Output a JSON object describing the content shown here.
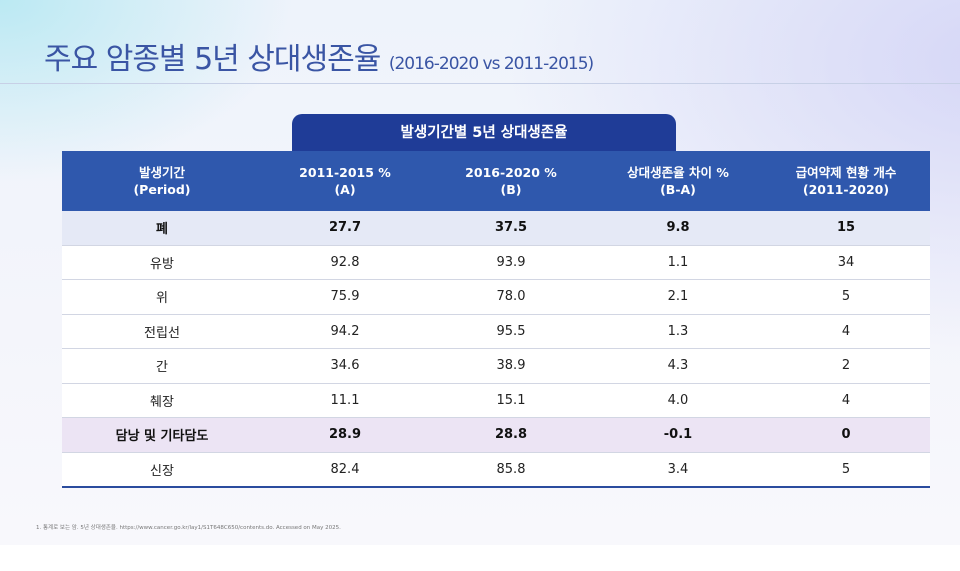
{
  "title": {
    "main": "주요 암종별 5년 상대생존율",
    "sub": "(2016-2020 vs 2011-2015)"
  },
  "table": {
    "tab_label": "발생기간별 5년 상대생존율",
    "headers": [
      {
        "line1": "발생기간",
        "line2": "(Period)"
      },
      {
        "line1": "2011-2015 %",
        "line2": "(A)"
      },
      {
        "line1": "2016-2020 %",
        "line2": "(B)"
      },
      {
        "line1": "상대생존율 차이 %",
        "line2": "(B-A)"
      },
      {
        "line1": "급여약제 현황 개수",
        "line2": "(2011-2020)"
      }
    ],
    "rows": [
      [
        "폐",
        "27.7",
        "37.5",
        "9.8",
        "15"
      ],
      [
        "유방",
        "92.8",
        "93.9",
        "1.1",
        "34"
      ],
      [
        "위",
        "75.9",
        "78.0",
        "2.1",
        "5"
      ],
      [
        "전립선",
        "94.2",
        "95.5",
        "1.3",
        "4"
      ],
      [
        "간",
        "34.6",
        "38.9",
        "4.3",
        "2"
      ],
      [
        "췌장",
        "11.1",
        "15.1",
        "4.0",
        "4"
      ],
      [
        "담낭 및 기타담도",
        "28.9",
        "28.8",
        "-0.1",
        "0"
      ],
      [
        "신장",
        "82.4",
        "85.8",
        "3.4",
        "5"
      ]
    ]
  },
  "footnote": "1. 통계로 보는 암. 5년 상대생존율. https://www.cancer.go.kr/lay1/S1T648C650/contents.do. Accessed on May 2025."
}
